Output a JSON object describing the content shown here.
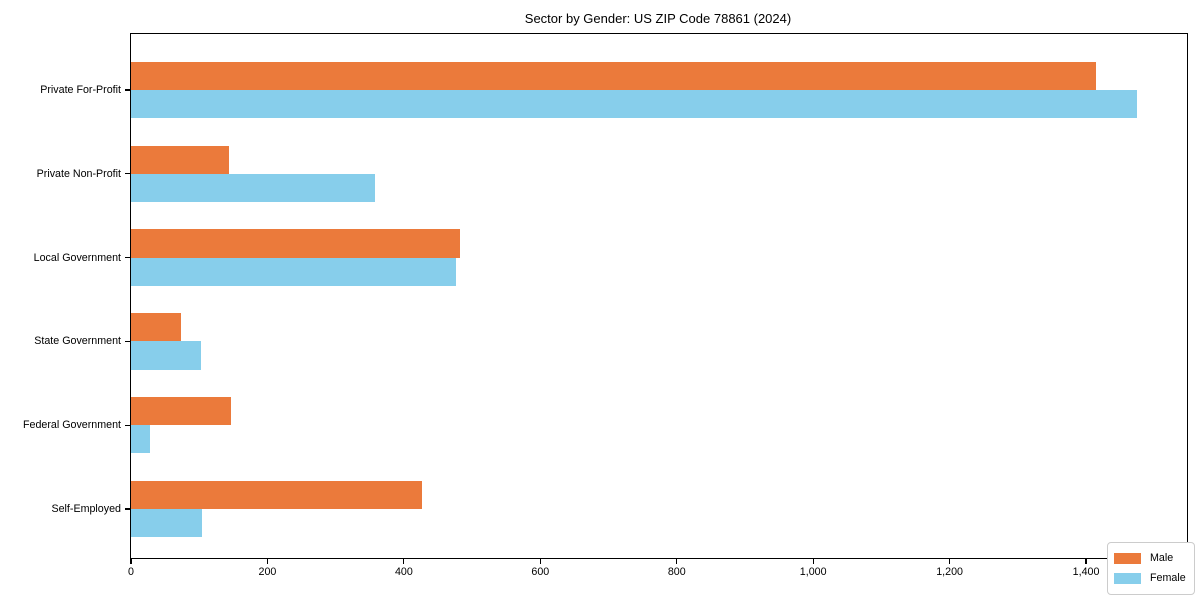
{
  "title": "Sector by Gender: US ZIP Code 78861 (2024)",
  "chart_data": {
    "type": "bar",
    "orientation": "horizontal",
    "title": "Sector by Gender: US ZIP Code 78861 (2024)",
    "categories": [
      "Private For-Profit",
      "Private Non-Profit",
      "Local Government",
      "State Government",
      "Federal Government",
      "Self-Employed"
    ],
    "series": [
      {
        "name": "Male",
        "color": "#EB7A3B",
        "values": [
          1414,
          143,
          482,
          74,
          147,
          426
        ]
      },
      {
        "name": "Female",
        "color": "#87CEEB",
        "values": [
          1474,
          358,
          477,
          103,
          28,
          104
        ]
      }
    ],
    "xlabel": "",
    "ylabel": "",
    "xlim": [
      0,
      1548
    ],
    "xticks": [
      {
        "value": 0,
        "label": "0"
      },
      {
        "value": 200,
        "label": "200"
      },
      {
        "value": 400,
        "label": "400"
      },
      {
        "value": 600,
        "label": "600"
      },
      {
        "value": 800,
        "label": "800"
      },
      {
        "value": 1000,
        "label": "1,000"
      },
      {
        "value": 1200,
        "label": "1,200"
      },
      {
        "value": 1400,
        "label": "1,400"
      }
    ],
    "grid": false,
    "legend": {
      "position": "lower right",
      "entries": [
        "Male",
        "Female"
      ]
    },
    "colors": {
      "male": "#EB7A3B",
      "female": "#87CEEB",
      "spine": "#000000",
      "legend_border": "#cccccc",
      "background": "#ffffff"
    }
  }
}
